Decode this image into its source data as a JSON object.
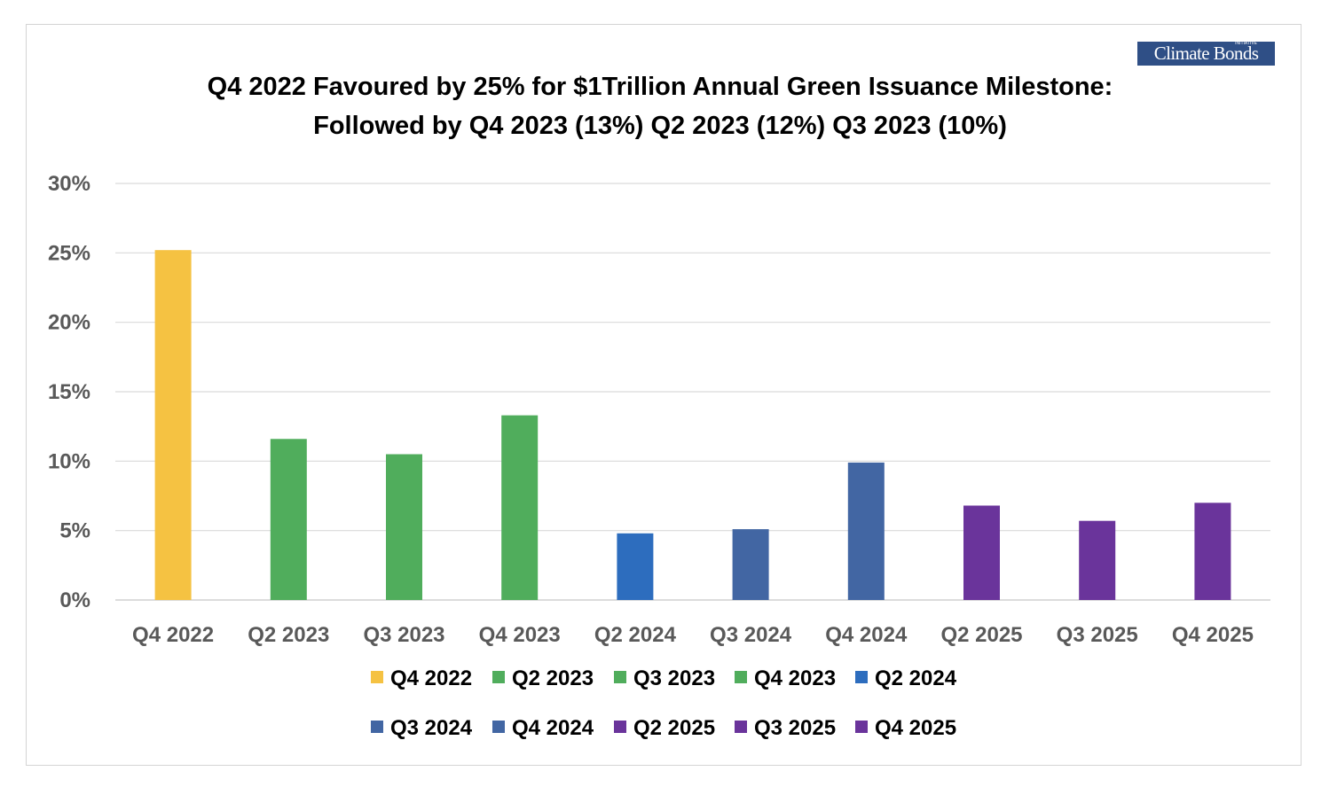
{
  "logo": {
    "text": "Climate Bonds",
    "tagline": "INITIATIVE"
  },
  "chart_data": {
    "type": "bar",
    "title_line1": "Q4 2022 Favoured by 25% for $1Trillion Annual Green Issuance Milestone:",
    "title_line2": "Followed by Q4 2023 (13%) Q2 2023 (12%) Q3 2023 (10%)",
    "xlabel": "",
    "ylabel": "",
    "ylim": [
      0,
      30
    ],
    "yticks": [
      0,
      5,
      10,
      15,
      20,
      25,
      30
    ],
    "ytick_format": "%",
    "grid": true,
    "legend_position": "bottom",
    "categories": [
      "Q4 2022",
      "Q2 2023",
      "Q3 2023",
      "Q4 2023",
      "Q2 2024",
      "Q3 2024",
      "Q4 2024",
      "Q2 2025",
      "Q3 2025",
      "Q4 2025"
    ],
    "values": [
      25.2,
      11.6,
      10.5,
      13.3,
      4.8,
      5.1,
      9.9,
      6.8,
      5.7,
      7.0
    ],
    "colors": [
      "#f5c242",
      "#50ad5c",
      "#50ad5c",
      "#50ad5c",
      "#2d6dbe",
      "#4266a3",
      "#4266a3",
      "#6a349b",
      "#6a349b",
      "#6a349b"
    ]
  }
}
